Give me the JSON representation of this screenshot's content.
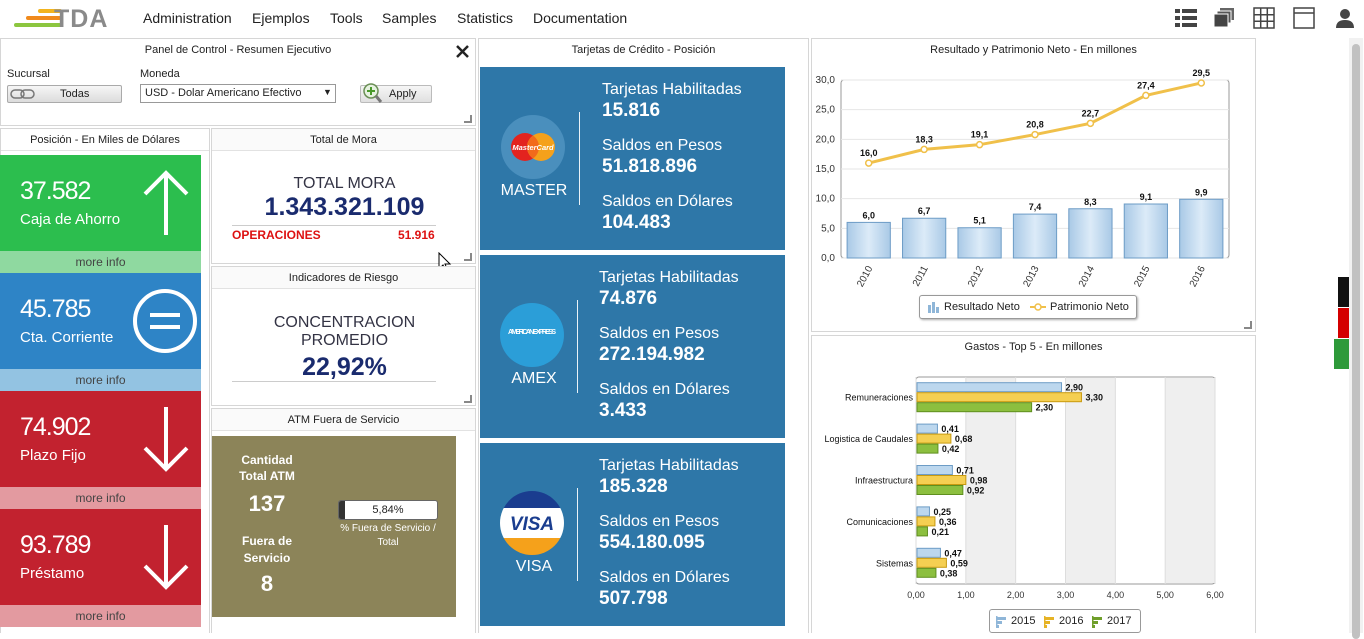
{
  "app": {
    "logo_text": "TDA"
  },
  "menu": [
    "Administration",
    "Ejemplos",
    "Tools",
    "Samples",
    "Statistics",
    "Documentation"
  ],
  "toolbar_icons": [
    "list-view-icon",
    "stack-view-icon",
    "grid-view-icon",
    "window-view-icon",
    "user-icon"
  ],
  "panel_control": {
    "title": "Panel de Control - Resumen Ejecutivo",
    "sucursal_label": "Sucursal",
    "sucursal_button": "Todas",
    "moneda_label": "Moneda",
    "moneda_value": "USD - Dolar Americano Efectivo",
    "apply_label": "Apply"
  },
  "posicion": {
    "title": "Posición - En Miles de Dólares",
    "tiles": [
      {
        "value": "37.582",
        "label": "Caja de Ahorro",
        "more": "more info",
        "color": "#2cbe4e"
      },
      {
        "value": "45.785",
        "label": "Cta. Corriente",
        "more": "more info",
        "color": "#2e84c6"
      },
      {
        "value": "74.902",
        "label": "Plazo Fijo",
        "more": "more info",
        "color": "#c2222f"
      },
      {
        "value": "93.789",
        "label": "Préstamo",
        "more": "more info",
        "color": "#c2222f"
      }
    ]
  },
  "mora": {
    "title": "Total de Mora",
    "heading": "TOTAL MORA",
    "value": "1.343.321.109",
    "ops_label": "OPERACIONES",
    "ops_value": "51.916"
  },
  "riesgo": {
    "title": "Indicadores de Riesgo",
    "line1": "CONCENTRACION",
    "line2": "PROMEDIO",
    "value": "22,92%"
  },
  "atm": {
    "title": "ATM Fuera de Servicio",
    "total_label": "Cantidad Total ATM",
    "total_value": "137",
    "fuera_label": "Fuera de Servicio",
    "fuera_value": "8",
    "pct_value": "5,84%",
    "pct_fraction": 0.0584,
    "pct_caption": "% Fuera de Servicio / Total"
  },
  "tarjetas": {
    "title": "Tarjetas de Crédito - Posición",
    "cards": [
      {
        "brand": "MASTER",
        "logo_icon": "mastercard-icon",
        "hab_label": "Tarjetas Habilitadas",
        "hab": "15.816",
        "pesos_label": "Saldos en Pesos",
        "pesos": "51.818.896",
        "dolares_label": "Saldos en Dólares",
        "dolares": "104.483"
      },
      {
        "brand": "AMEX",
        "logo_icon": "american-express-icon",
        "hab_label": "Tarjetas Habilitadas",
        "hab": "74.876",
        "pesos_label": "Saldos en Pesos",
        "pesos": "272.194.982",
        "dolares_label": "Saldos en Dólares",
        "dolares": "3.433"
      },
      {
        "brand": "VISA",
        "logo_icon": "visa-icon",
        "hab_label": "Tarjetas Habilitadas",
        "hab": "185.328",
        "pesos_label": "Saldos en Pesos",
        "pesos": "554.180.095",
        "dolares_label": "Saldos en Dólares",
        "dolares": "507.798"
      }
    ],
    "mc_logo_text": "MasterCard",
    "amex_logo_text": "AMERICAN EXPRESS",
    "visa_logo_text": "VISA"
  },
  "chart_data": [
    {
      "type": "bar",
      "title": "Resultado y Patrimonio Neto - En millones",
      "categories": [
        "2010",
        "2011",
        "2012",
        "2013",
        "2014",
        "2015",
        "2016"
      ],
      "series": [
        {
          "name": "Resultado Neto",
          "type": "bar",
          "values": [
            6.0,
            6.7,
            5.1,
            7.4,
            8.3,
            9.1,
            9.9
          ],
          "labels": [
            "6,0",
            "6,7",
            "5,1",
            "7,4",
            "8,3",
            "9,1",
            "9,9"
          ],
          "color": "#bcd7ee"
        },
        {
          "name": "Patrimonio Neto",
          "type": "line",
          "values": [
            16.0,
            18.3,
            19.1,
            20.8,
            22.7,
            27.4,
            29.5
          ],
          "labels": [
            "16,0",
            "18,3",
            "19,1",
            "20,8",
            "22,7",
            "27,4",
            "29,5"
          ],
          "color": "#f0c04a"
        }
      ],
      "ylim": [
        0,
        30
      ],
      "yticks": [
        "0,0",
        "5,0",
        "10,0",
        "15,0",
        "20,0",
        "25,0",
        "30,0"
      ],
      "legend": "bottom"
    },
    {
      "type": "bar",
      "orientation": "horizontal",
      "title": "Gastos - Top 5 - En millones",
      "categories": [
        "Remuneraciones",
        "Logistica de Caudales",
        "Infraestructura",
        "Comunicaciones",
        "Sistemas"
      ],
      "series": [
        {
          "name": "2015",
          "values": [
            2.9,
            0.41,
            0.71,
            0.25,
            0.47
          ],
          "labels": [
            "2,90",
            "0,41",
            "0,71",
            "0,25",
            "0,47"
          ],
          "color": "#bcd7ee"
        },
        {
          "name": "2016",
          "values": [
            3.3,
            0.68,
            0.98,
            0.36,
            0.59
          ],
          "labels": [
            "3,30",
            "0,68",
            "0,98",
            "0,36",
            "0,59"
          ],
          "color": "#f2c94c"
        },
        {
          "name": "2017",
          "values": [
            2.3,
            0.42,
            0.92,
            0.21,
            0.38
          ],
          "labels": [
            "2,30",
            "0,42",
            "0,92",
            "0,21",
            "0,38"
          ],
          "color": "#8cbf3f"
        }
      ],
      "xlim": [
        0,
        6
      ],
      "xticks": [
        "0,00",
        "1,00",
        "2,00",
        "3,00",
        "4,00",
        "5,00",
        "6,00"
      ],
      "legend": "bottom"
    }
  ]
}
